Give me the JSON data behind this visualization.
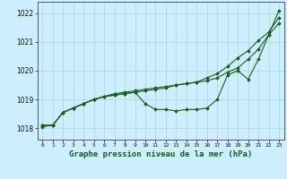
{
  "title": "Graphe pression niveau de la mer (hPa)",
  "bg_color": "#cceeff",
  "grid_color": "#aadddd",
  "line_color": "#1a5c1a",
  "x_labels": [
    "0",
    "1",
    "2",
    "3",
    "4",
    "5",
    "6",
    "7",
    "8",
    "9",
    "10",
    "11",
    "12",
    "13",
    "14",
    "15",
    "16",
    "17",
    "18",
    "19",
    "20",
    "21",
    "22",
    "23"
  ],
  "ylim": [
    1017.6,
    1022.4
  ],
  "yticks": [
    1018,
    1019,
    1020,
    1021,
    1022
  ],
  "series": [
    [
      1018.05,
      1018.1,
      1018.55,
      1018.7,
      1018.85,
      1019.0,
      1019.1,
      1019.2,
      1019.25,
      1019.3,
      1019.35,
      1019.4,
      1019.45,
      1019.5,
      1019.55,
      1019.6,
      1019.75,
      1019.9,
      1020.15,
      1020.45,
      1020.7,
      1021.05,
      1021.35,
      1021.85
    ],
    [
      1018.1,
      1018.1,
      1018.55,
      1018.7,
      1018.85,
      1019.0,
      1019.1,
      1019.15,
      1019.2,
      1019.25,
      1018.85,
      1018.65,
      1018.65,
      1018.6,
      1018.65,
      1018.65,
      1018.7,
      1019.0,
      1019.85,
      1020.0,
      1019.7,
      1020.4,
      1021.25,
      1022.1
    ],
    [
      1018.1,
      1018.1,
      1018.55,
      1018.7,
      1018.85,
      1019.0,
      1019.1,
      1019.15,
      1019.2,
      1019.25,
      1019.3,
      1019.35,
      1019.4,
      1019.5,
      1019.55,
      1019.6,
      1019.65,
      1019.75,
      1019.95,
      1020.1,
      1020.4,
      1020.75,
      1021.25,
      1021.65
    ]
  ]
}
